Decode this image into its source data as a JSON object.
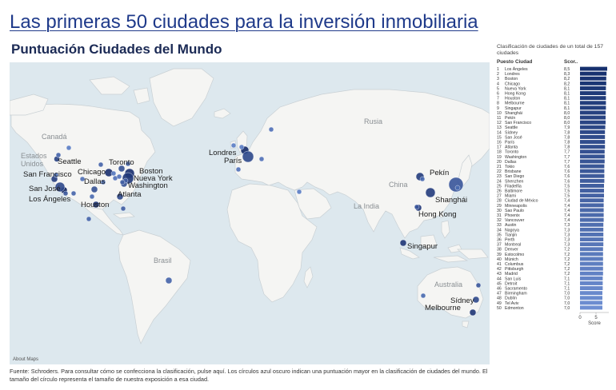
{
  "title": "Las primeras 50 ciudades para la inversión inmobiliaria",
  "subtitle": "Puntuación Ciudades del Mundo",
  "footer": "Fuente: Schroders. Para consultar cómo se confecciona la clasificación, pulse aquí. Los círculos azul oscuro indican una puntuación mayor en la clasificación de ciudades del mundo. El tamaño del círculo representa el tamaño de nuestra exposición a esa ciudad.",
  "map": {
    "attribution": "About Maps",
    "region_labels": [
      "Canadá",
      "Estados Unidos",
      "Rusia",
      "China",
      "La India",
      "Brasil",
      "Australia"
    ],
    "city_labels": [
      "Seattle",
      "San Francisco",
      "San José",
      "Los Ángeles",
      "Chicago",
      "Dallas",
      "Houston",
      "Toronto",
      "Boston",
      "Nueva York",
      "Washington",
      "Atlanta",
      "Londres",
      "París",
      "Pekín",
      "Shanghái",
      "Hong Kong",
      "Singapur",
      "Sídney",
      "Melbourne"
    ]
  },
  "colors": {
    "ocean": "#dde8ee",
    "land": "#f5f5f3",
    "bubble_dark": "#0d1f5c",
    "bubble_light": "#5b7ec6",
    "bar_dark": "#16306e",
    "bar_light": "#6e8fd2"
  },
  "chart_data": {
    "type": "bar",
    "title": "Clasificación de ciudades de un total de 157 ciudades",
    "column_headers": [
      "Puesto",
      "Ciudad",
      "Scor.."
    ],
    "xlabel": "Score",
    "xticks": [
      0,
      5
    ],
    "xlim": [
      0,
      9
    ],
    "rows": [
      {
        "rank": 1,
        "city": "Los Ángeles",
        "score": 8.5
      },
      {
        "rank": 2,
        "city": "Londres",
        "score": 8.3
      },
      {
        "rank": 3,
        "city": "Boston",
        "score": 8.2
      },
      {
        "rank": 4,
        "city": "Chicago",
        "score": 8.2
      },
      {
        "rank": 5,
        "city": "Nueva York",
        "score": 8.1
      },
      {
        "rank": 6,
        "city": "Hong Kong",
        "score": 8.1
      },
      {
        "rank": 7,
        "city": "Houston",
        "score": 8.1
      },
      {
        "rank": 8,
        "city": "Melbourne",
        "score": 8.1
      },
      {
        "rank": 9,
        "city": "Singapur",
        "score": 8.1
      },
      {
        "rank": 10,
        "city": "Shanghái",
        "score": 8.0
      },
      {
        "rank": 11,
        "city": "Pekín",
        "score": 8.0
      },
      {
        "rank": 12,
        "city": "San Francisco",
        "score": 8.0
      },
      {
        "rank": 13,
        "city": "Seattle",
        "score": 7.9
      },
      {
        "rank": 14,
        "city": "Sídney",
        "score": 7.8
      },
      {
        "rank": 15,
        "city": "San José",
        "score": 7.8
      },
      {
        "rank": 16,
        "city": "París",
        "score": 7.8
      },
      {
        "rank": 17,
        "city": "Atlanta",
        "score": 7.8
      },
      {
        "rank": 18,
        "city": "Toronto",
        "score": 7.7
      },
      {
        "rank": 19,
        "city": "Washington",
        "score": 7.7
      },
      {
        "rank": 20,
        "city": "Dallas",
        "score": 7.7
      },
      {
        "rank": 21,
        "city": "Tokio",
        "score": 7.6
      },
      {
        "rank": 22,
        "city": "Brisbane",
        "score": 7.6
      },
      {
        "rank": 23,
        "city": "San Diego",
        "score": 7.6
      },
      {
        "rank": 24,
        "city": "Shenzhen",
        "score": 7.6
      },
      {
        "rank": 25,
        "city": "Filadelfia",
        "score": 7.5
      },
      {
        "rank": 26,
        "city": "Baltimore",
        "score": 7.5
      },
      {
        "rank": 27,
        "city": "Miami",
        "score": 7.5
      },
      {
        "rank": 28,
        "city": "Ciudad de México",
        "score": 7.4
      },
      {
        "rank": 29,
        "city": "Minneapolis",
        "score": 7.4
      },
      {
        "rank": 30,
        "city": "Sao Paulo",
        "score": 7.4
      },
      {
        "rank": 31,
        "city": "Phoenix",
        "score": 7.4
      },
      {
        "rank": 32,
        "city": "Vancouver",
        "score": 7.4
      },
      {
        "rank": 33,
        "city": "Austin",
        "score": 7.3
      },
      {
        "rank": 34,
        "city": "Nagoya",
        "score": 7.3
      },
      {
        "rank": 35,
        "city": "Tianjin",
        "score": 7.3
      },
      {
        "rank": 36,
        "city": "Perth",
        "score": 7.3
      },
      {
        "rank": 37,
        "city": "Montreal",
        "score": 7.3
      },
      {
        "rank": 38,
        "city": "Denver",
        "score": 7.2
      },
      {
        "rank": 39,
        "city": "Estocolmo",
        "score": 7.2
      },
      {
        "rank": 40,
        "city": "Múnich",
        "score": 7.2
      },
      {
        "rank": 41,
        "city": "Columbus",
        "score": 7.2
      },
      {
        "rank": 42,
        "city": "Pittsburgh",
        "score": 7.2
      },
      {
        "rank": 43,
        "city": "Madrid",
        "score": 7.2
      },
      {
        "rank": 44,
        "city": "San Luis",
        "score": 7.1
      },
      {
        "rank": 45,
        "city": "Detroit",
        "score": 7.1
      },
      {
        "rank": 46,
        "city": "Sacramento",
        "score": 7.1
      },
      {
        "rank": 47,
        "city": "Birmingham",
        "score": 7.0
      },
      {
        "rank": 48,
        "city": "Dublín",
        "score": 7.0
      },
      {
        "rank": 49,
        "city": "Tel Aviv",
        "score": 7.0
      },
      {
        "rank": 50,
        "city": "Edmonton",
        "score": 7.0
      }
    ]
  }
}
